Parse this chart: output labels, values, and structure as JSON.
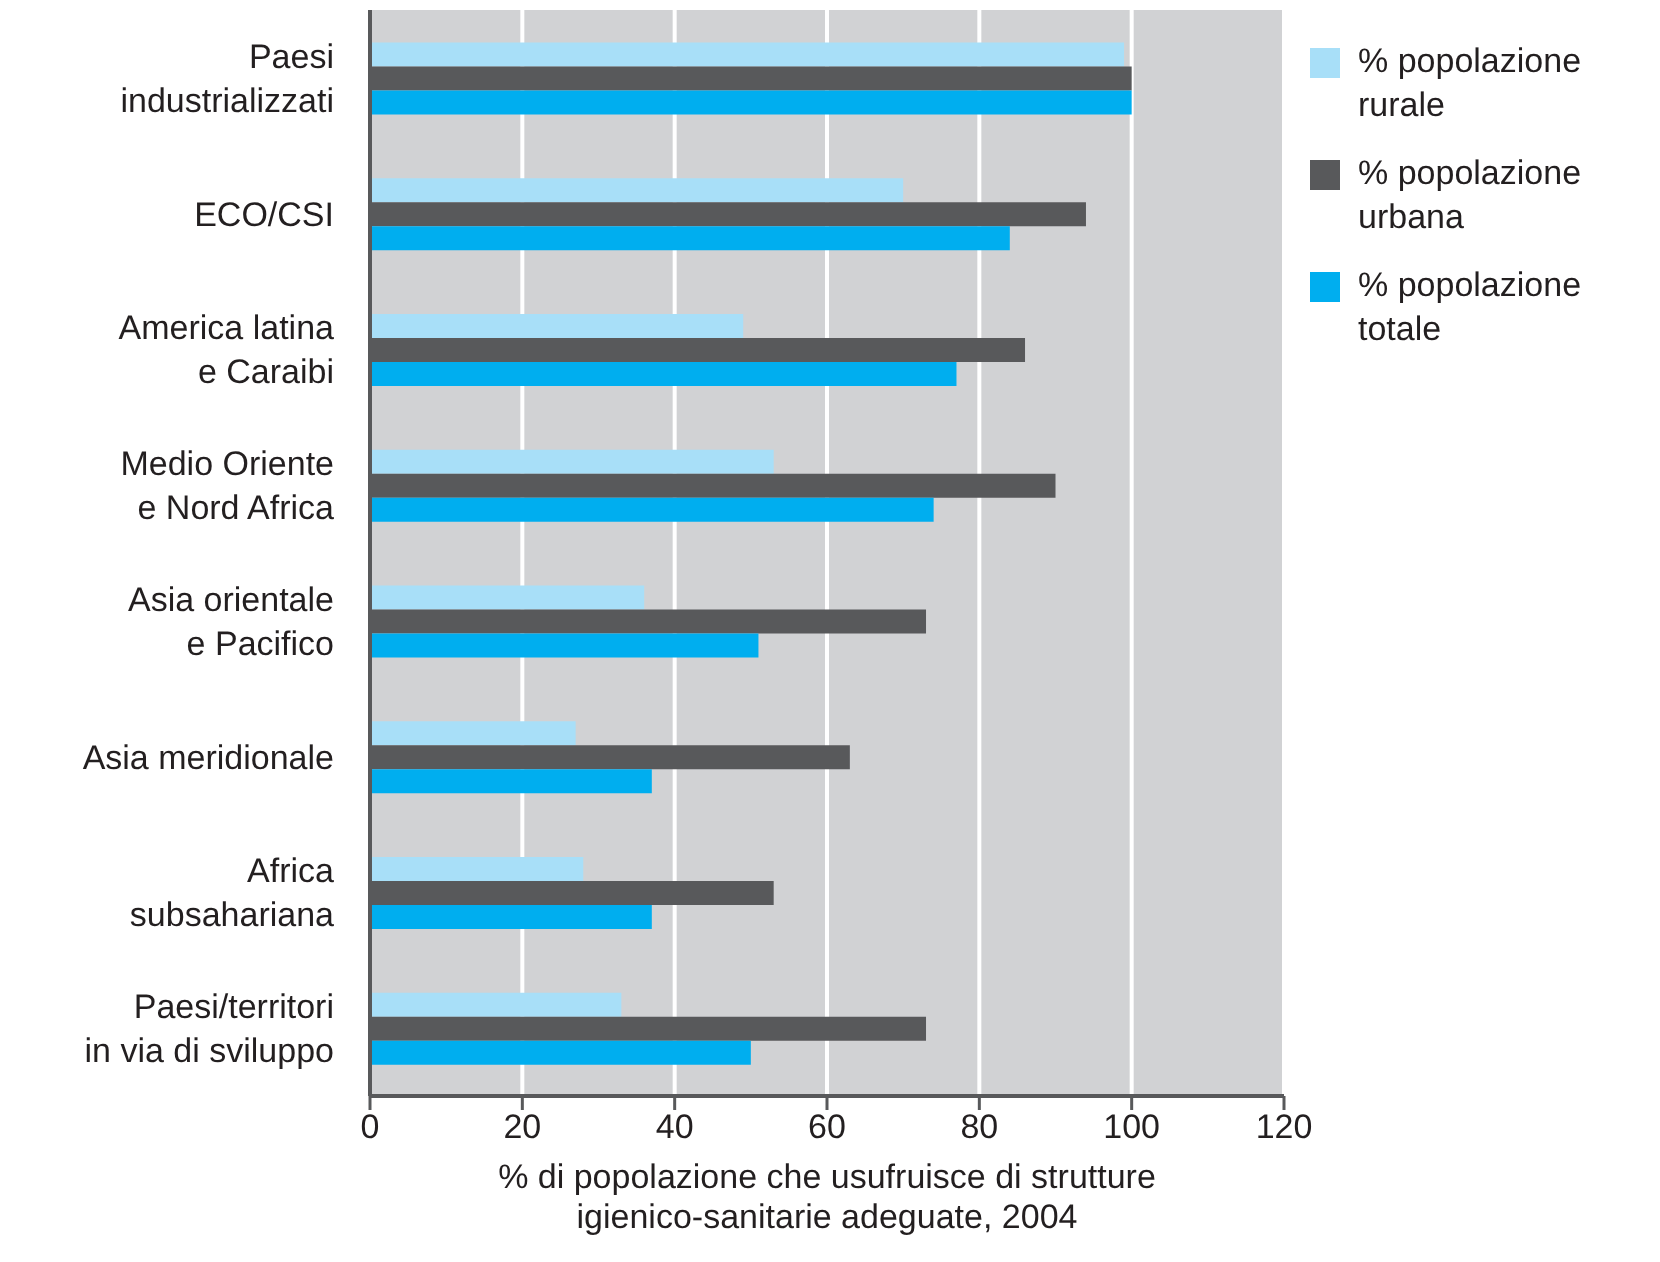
{
  "chart_data": {
    "type": "bar",
    "orientation": "horizontal",
    "xlabel": "% di popolazione che usufruisce di strutture\nigienico-sanitarie adeguate, 2004",
    "categories": [
      "Paesi\nindustrializzati",
      "ECO/CSI",
      "America latina\ne Caraibi",
      "Medio Oriente\ne Nord Africa",
      "Asia orientale\ne Pacifico",
      "Asia meridionale",
      "Africa\nsubsahariana",
      "Paesi/territori\nin via di sviluppo"
    ],
    "series": [
      {
        "name": "% popolazione\nrurale",
        "color": "#a8dff8",
        "values": [
          99,
          70,
          49,
          53,
          36,
          27,
          28,
          33
        ]
      },
      {
        "name": "% popolazione\nurbana",
        "color": "#58595b",
        "values": [
          100,
          94,
          86,
          90,
          73,
          63,
          53,
          73
        ]
      },
      {
        "name": "% popolazione\ntotale",
        "color": "#00aeef",
        "values": [
          100,
          84,
          77,
          74,
          51,
          37,
          37,
          50
        ]
      }
    ],
    "xlim": [
      0,
      120
    ],
    "xticks": [
      0,
      20,
      40,
      60,
      80,
      100,
      120
    ],
    "grid": "x",
    "legend": "top right"
  }
}
